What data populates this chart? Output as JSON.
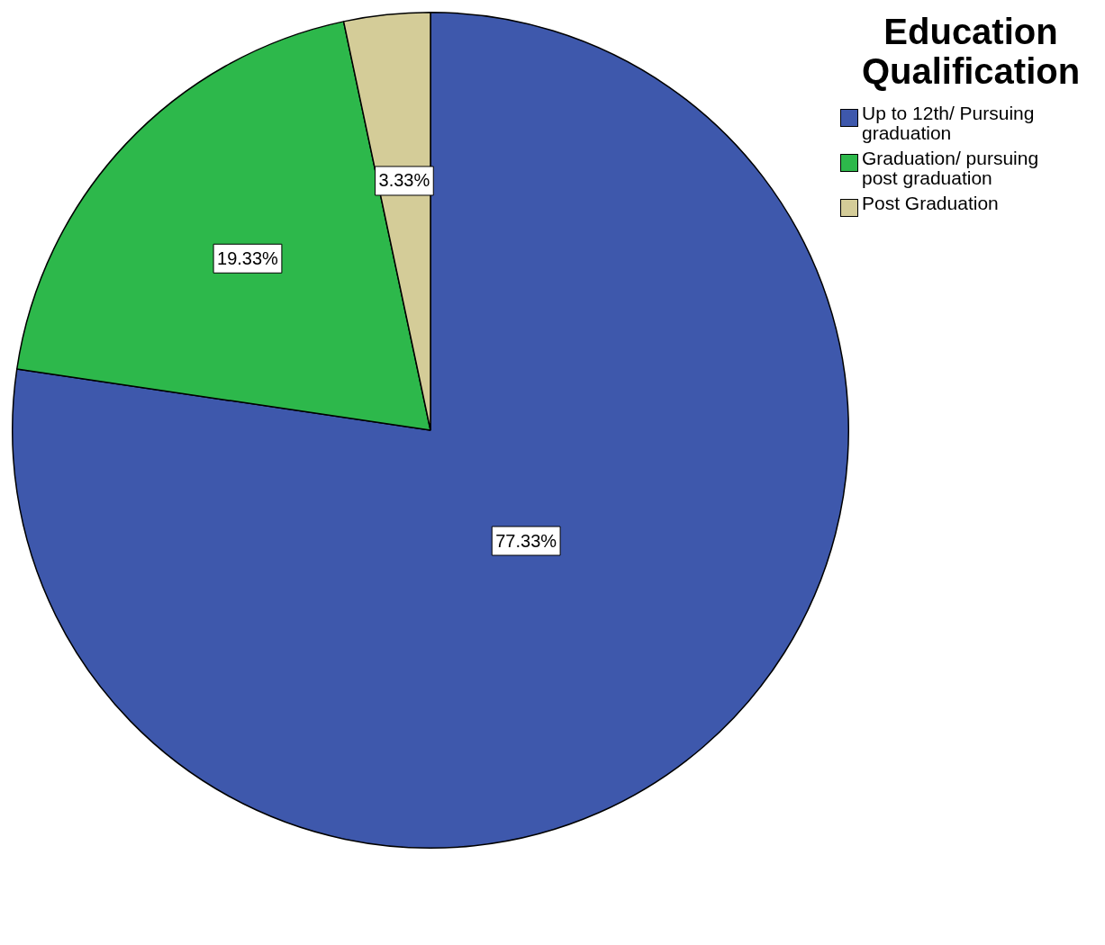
{
  "chart_data": {
    "type": "pie",
    "legend_title": "Education Qualification",
    "legend": "top right",
    "value_labels": [
      "77.33%",
      "19.33%",
      "3.33%"
    ],
    "categories": [
      "Up to 12th/ Pursuing graduation",
      "Graduation/ pursuing post graduation",
      "Post Graduation"
    ],
    "values": [
      77.33,
      19.33,
      3.33
    ],
    "colors": [
      "#3e58ac",
      "#2db84b",
      "#d4cc98"
    ]
  }
}
